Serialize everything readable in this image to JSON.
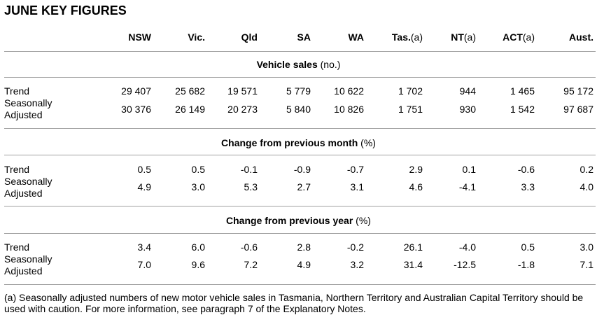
{
  "title": "JUNE KEY FIGURES",
  "columns": [
    {
      "bold": "NSW",
      "suffix": ""
    },
    {
      "bold": "Vic.",
      "suffix": ""
    },
    {
      "bold": "Qld",
      "suffix": ""
    },
    {
      "bold": "SA",
      "suffix": ""
    },
    {
      "bold": "WA",
      "suffix": ""
    },
    {
      "bold": "Tas.",
      "suffix": "(a)"
    },
    {
      "bold": "NT",
      "suffix": "(a)"
    },
    {
      "bold": "ACT",
      "suffix": "(a)"
    },
    {
      "bold": "Aust.",
      "suffix": ""
    }
  ],
  "sections": [
    {
      "heading": "Vehicle sales",
      "unit": " (no.)",
      "trend_label": "Trend",
      "sa_label_1": "Seasonally",
      "sa_label_2": "Adjusted",
      "trend": [
        "29 407",
        "25 682",
        "19 571",
        "5 779",
        "10 622",
        "1 702",
        "944",
        "1 465",
        "95 172"
      ],
      "seasonally_adjusted": [
        "30 376",
        "26 149",
        "20 273",
        "5 840",
        "10 826",
        "1 751",
        "930",
        "1 542",
        "97 687"
      ]
    },
    {
      "heading": "Change from previous month",
      "unit": " (%)",
      "trend_label": "Trend",
      "sa_label_1": "Seasonally",
      "sa_label_2": "Adjusted",
      "trend": [
        "0.5",
        "0.5",
        "-0.1",
        "-0.9",
        "-0.7",
        "2.9",
        "0.1",
        "-0.6",
        "0.2"
      ],
      "seasonally_adjusted": [
        "4.9",
        "3.0",
        "5.3",
        "2.7",
        "3.1",
        "4.6",
        "-4.1",
        "3.3",
        "4.0"
      ]
    },
    {
      "heading": "Change from previous year",
      "unit": " (%)",
      "trend_label": "Trend",
      "sa_label_1": "Seasonally",
      "sa_label_2": "Adjusted",
      "trend": [
        "3.4",
        "6.0",
        "-0.6",
        "2.8",
        "-0.2",
        "26.1",
        "-4.0",
        "0.5",
        "3.0"
      ],
      "seasonally_adjusted": [
        "7.0",
        "9.6",
        "7.2",
        "4.9",
        "3.2",
        "31.4",
        "-12.5",
        "-1.8",
        "7.1"
      ]
    }
  ],
  "footnote": "(a) Seasonally adjusted numbers of new motor vehicle sales in Tasmania, Northern Territory and Australian Capital Territory should be used with caution. For more information, see paragraph 7 of the Explanatory Notes."
}
